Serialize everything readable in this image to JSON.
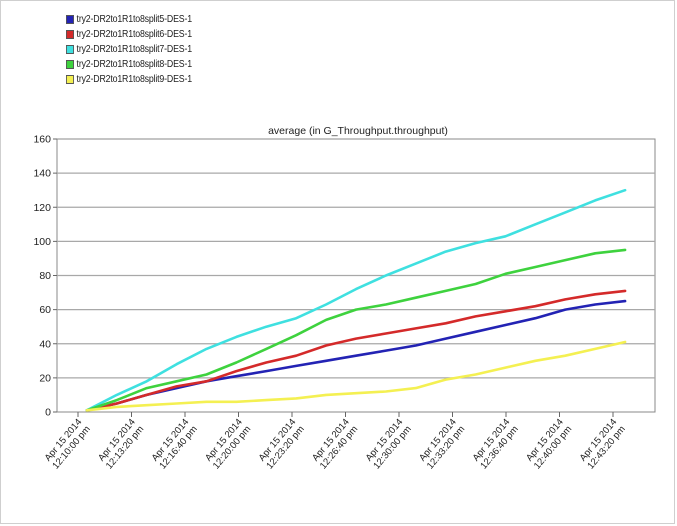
{
  "chart_data": {
    "type": "line",
    "title": "average (in G_Throughput.throughput)",
    "xlabel": "",
    "ylabel": "",
    "ylim": [
      0,
      160
    ],
    "yticks": [
      0,
      20,
      40,
      60,
      80,
      100,
      120,
      140,
      160
    ],
    "x_tick_labels": [
      [
        "Apr 15 2014",
        "12:10:00 pm"
      ],
      [
        "Apr 15 2014",
        "12:13:20 pm"
      ],
      [
        "Apr 15 2014",
        "12:16:40 pm"
      ],
      [
        "Apr 15 2014",
        "12:20:00 pm"
      ],
      [
        "Apr 15 2014",
        "12:23:20 pm"
      ],
      [
        "Apr 15 2014",
        "12:26:40 pm"
      ],
      [
        "Apr 15 2014",
        "12:30:00 pm"
      ],
      [
        "Apr 15 2014",
        "12:33:20 pm"
      ],
      [
        "Apr 15 2014",
        "12:36:40 pm"
      ],
      [
        "Apr 15 2014",
        "12:40:00 pm"
      ],
      [
        "Apr 15 2014",
        "12:43:20 pm"
      ]
    ],
    "grid": true,
    "legend_position": "top-left",
    "x_unit": "minutes after 12:10:00 pm",
    "series": [
      {
        "name": "try2-DR2to1R1to8split5-DES-1",
        "color": "#2323b4",
        "points": [
          [
            2,
            1
          ],
          [
            4,
            5
          ],
          [
            6,
            10
          ],
          [
            8,
            14
          ],
          [
            10,
            18
          ],
          [
            12,
            21
          ],
          [
            14,
            24
          ],
          [
            16,
            27
          ],
          [
            18,
            30
          ],
          [
            20,
            33
          ],
          [
            22,
            36
          ],
          [
            24,
            39
          ],
          [
            26,
            43
          ],
          [
            28,
            47
          ],
          [
            30,
            51
          ],
          [
            32,
            55
          ],
          [
            34,
            60
          ],
          [
            36,
            63
          ],
          [
            38,
            65
          ]
        ]
      },
      {
        "name": "try2-DR2to1R1to8split6-DES-1",
        "color": "#d42a2a",
        "points": [
          [
            2,
            1
          ],
          [
            4,
            5
          ],
          [
            6,
            10
          ],
          [
            8,
            15
          ],
          [
            10,
            18
          ],
          [
            12,
            24
          ],
          [
            14,
            29
          ],
          [
            16,
            33
          ],
          [
            18,
            39
          ],
          [
            20,
            43
          ],
          [
            22,
            46
          ],
          [
            24,
            49
          ],
          [
            26,
            52
          ],
          [
            28,
            56
          ],
          [
            30,
            59
          ],
          [
            32,
            62
          ],
          [
            34,
            66
          ],
          [
            36,
            69
          ],
          [
            38,
            71
          ]
        ]
      },
      {
        "name": "try2-DR2to1R1to8split7-DES-1",
        "color": "#3fe0e0",
        "points": [
          [
            2,
            1
          ],
          [
            4,
            10
          ],
          [
            6,
            18
          ],
          [
            8,
            28
          ],
          [
            10,
            37
          ],
          [
            12,
            44
          ],
          [
            14,
            50
          ],
          [
            16,
            55
          ],
          [
            18,
            63
          ],
          [
            20,
            72
          ],
          [
            22,
            80
          ],
          [
            24,
            87
          ],
          [
            26,
            94
          ],
          [
            28,
            99
          ],
          [
            30,
            103
          ],
          [
            32,
            110
          ],
          [
            34,
            117
          ],
          [
            36,
            124
          ],
          [
            38,
            130
          ]
        ]
      },
      {
        "name": "try2-DR2to1R1to8split8-DES-1",
        "color": "#3ed23e",
        "points": [
          [
            2,
            1
          ],
          [
            4,
            7
          ],
          [
            6,
            14
          ],
          [
            8,
            18
          ],
          [
            10,
            22
          ],
          [
            12,
            29
          ],
          [
            14,
            37
          ],
          [
            16,
            45
          ],
          [
            18,
            54
          ],
          [
            20,
            60
          ],
          [
            22,
            63
          ],
          [
            24,
            67
          ],
          [
            26,
            71
          ],
          [
            28,
            75
          ],
          [
            30,
            81
          ],
          [
            32,
            85
          ],
          [
            34,
            89
          ],
          [
            36,
            93
          ],
          [
            38,
            95
          ]
        ]
      },
      {
        "name": "try2-DR2to1R1to8split9-DES-1",
        "color": "#f4f052",
        "points": [
          [
            2,
            1
          ],
          [
            4,
            3
          ],
          [
            6,
            4
          ],
          [
            8,
            5
          ],
          [
            10,
            6
          ],
          [
            12,
            6
          ],
          [
            14,
            7
          ],
          [
            16,
            8
          ],
          [
            18,
            10
          ],
          [
            20,
            11
          ],
          [
            22,
            12
          ],
          [
            24,
            14
          ],
          [
            26,
            19
          ],
          [
            28,
            22
          ],
          [
            30,
            26
          ],
          [
            32,
            30
          ],
          [
            34,
            33
          ],
          [
            36,
            37
          ],
          [
            38,
            41
          ]
        ]
      }
    ]
  }
}
